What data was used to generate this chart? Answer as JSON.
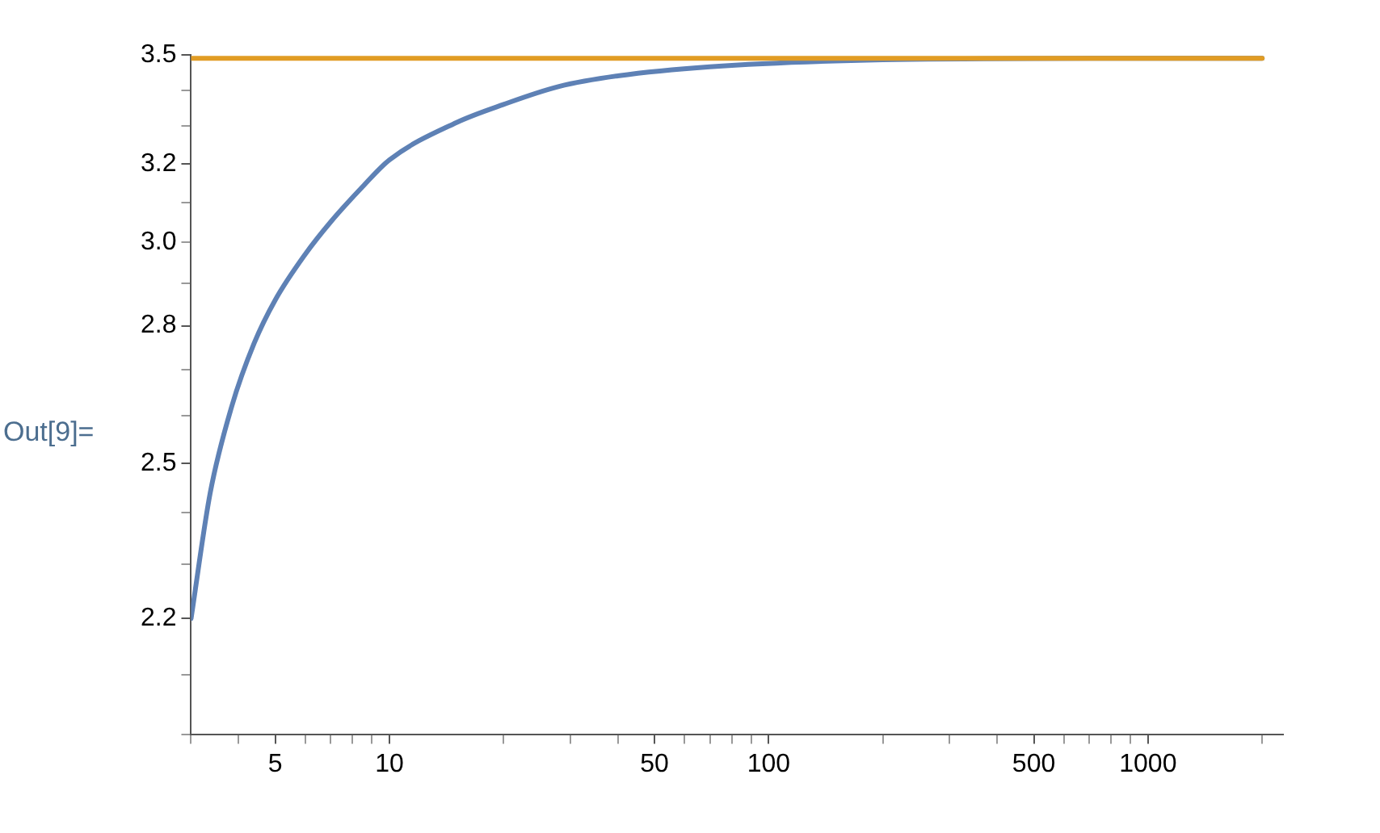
{
  "chart_data": {
    "type": "line",
    "log": "xy",
    "grid": false,
    "legend": false,
    "marker": "none",
    "line_style": "solid",
    "xlim": [
      3,
      2270
    ],
    "ylim": [
      2.0,
      3.5
    ],
    "xticks": [
      {
        "value": 3,
        "label": null
      },
      {
        "value": 4,
        "label": null
      },
      5,
      {
        "value": 6,
        "label": null
      },
      {
        "value": 7,
        "label": null
      },
      {
        "value": 8,
        "label": null
      },
      {
        "value": 9,
        "label": null
      },
      10,
      {
        "value": 20,
        "label": null
      },
      {
        "value": 30,
        "label": null
      },
      {
        "value": 40,
        "label": null
      },
      50,
      {
        "value": 60,
        "label": null
      },
      {
        "value": 70,
        "label": null
      },
      {
        "value": 80,
        "label": null
      },
      {
        "value": 90,
        "label": null
      },
      100,
      {
        "value": 200,
        "label": null
      },
      {
        "value": 300,
        "label": null
      },
      {
        "value": 400,
        "label": null
      },
      500,
      {
        "value": 600,
        "label": null
      },
      {
        "value": 700,
        "label": null
      },
      {
        "value": 800,
        "label": null
      },
      {
        "value": 900,
        "label": null
      },
      1000,
      {
        "value": 2000,
        "label": null
      }
    ],
    "yticks": [
      {
        "value": 2.0,
        "label": null
      },
      {
        "value": 2.1,
        "label": null
      },
      2.2,
      {
        "value": 2.3,
        "label": null
      },
      {
        "value": 2.4,
        "label": null
      },
      2.5,
      {
        "value": 2.6,
        "label": null
      },
      {
        "value": 2.7,
        "label": null
      },
      2.8,
      {
        "value": 2.9,
        "label": null
      },
      {
        "value": 3,
        "label": "3.0"
      },
      {
        "value": 3.1,
        "label": null
      },
      3.2,
      {
        "value": 3.3,
        "label": null
      },
      {
        "value": 3.4,
        "label": null
      },
      3.5
    ],
    "series": [
      {
        "color": "#5e81b5",
        "x": [
          3,
          3.37,
          3.84,
          4.4,
          5,
          6,
          7,
          8.5,
          10,
          15,
          20,
          28,
          40,
          70,
          200,
          700,
          2000
        ],
        "values": [
          2.2,
          2.44,
          2.62,
          2.76,
          2.86,
          2.97,
          3.05,
          3.14,
          3.21,
          3.31,
          3.36,
          3.41,
          3.44,
          3.466,
          3.486,
          3.49,
          3.49
        ]
      },
      {
        "color": "#e19c24",
        "x": [
          3,
          2000
        ],
        "values": [
          3.49,
          3.49
        ]
      }
    ],
    "annotations": [
      "Out[9]="
    ]
  }
}
